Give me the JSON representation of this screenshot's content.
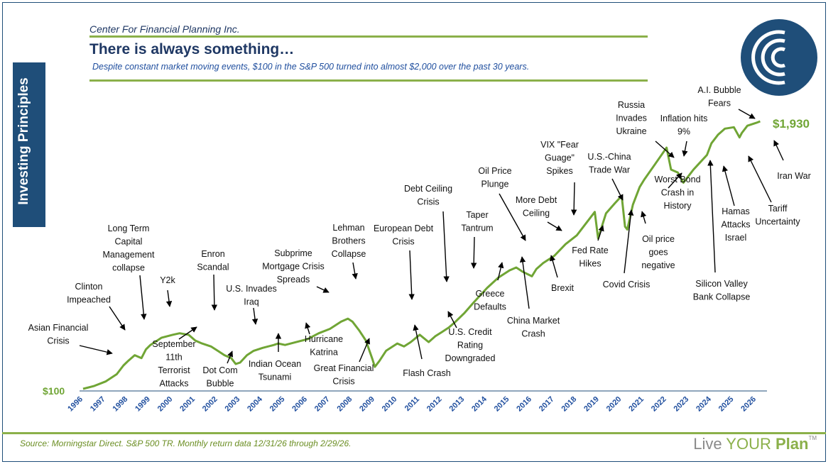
{
  "header": {
    "org": "Center For Financial Planning Inc.",
    "title": "There is always something…",
    "subtitle": "Despite constant market moving events, $100 in the S&P 500 turned into almost $2,000 over the past 30 years."
  },
  "sidebar": {
    "label": "Investing Principles"
  },
  "footer": {
    "source": "Source: Morningstar Direct. S&P 500 TR. Monthly return data 12/31/26 through 2/29/26.",
    "brand_prefix": "Live ",
    "brand_accent": "YOUR",
    "brand_suffix": " Plan",
    "brand_mark": "TM"
  },
  "colors": {
    "navy": "#1f4e79",
    "line": "#70a535",
    "axis_text": "#1f4e9e",
    "accent": "#8bb04a"
  },
  "chart_data": {
    "type": "line",
    "start_label": "$100",
    "end_label": "$1,930",
    "x_tick_labels": [
      "1996",
      "1997",
      "1998",
      "1999",
      "2000",
      "2001",
      "2002",
      "2003",
      "2004",
      "2005",
      "2006",
      "2007",
      "2008",
      "2009",
      "2010",
      "2011",
      "2012",
      "2013",
      "2014",
      "2015",
      "2016",
      "2017",
      "2018",
      "2019",
      "2020",
      "2021",
      "2022",
      "2023",
      "2024",
      "2025",
      "2026"
    ],
    "series": [
      {
        "x": [
          1996.0,
          1996.5,
          1997.0,
          1997.5,
          1997.8,
          1998.0,
          1998.3,
          1998.6,
          1998.8,
          1999.0,
          1999.5,
          2000.0,
          2000.3,
          2000.7,
          2001.0,
          2001.3,
          2001.7,
          2002.0,
          2002.3,
          2002.6,
          2002.8,
          2003.0,
          2003.3,
          2003.6,
          2004.0,
          2004.5,
          2004.7,
          2005.0,
          2005.5,
          2006.0,
          2006.5,
          2007.0,
          2007.5,
          2007.8,
          2008.0,
          2008.3,
          2008.6,
          2008.9,
          2009.0,
          2009.2,
          2009.5,
          2010.0,
          2010.3,
          2010.6,
          2011.0,
          2011.4,
          2011.7,
          2012.0,
          2012.3,
          2012.6,
          2013.0,
          2013.4,
          2014.0,
          2014.5,
          2015.0,
          2015.3,
          2015.6,
          2016.0,
          2016.2,
          2016.5,
          2017.0,
          2017.5,
          2018.0,
          2018.5,
          2018.8,
          2018.95,
          2019.3,
          2019.7,
          2020.0,
          2020.15,
          2020.25,
          2020.5,
          2020.8,
          2021.0,
          2021.5,
          2022.0,
          2022.2,
          2022.5,
          2022.75,
          2023.0,
          2023.2,
          2023.5,
          2023.8,
          2024.0,
          2024.3,
          2024.6,
          2025.0,
          2025.25,
          2025.35,
          2025.6,
          2026.0,
          2026.17
        ],
        "y": [
          100,
          120,
          150,
          200,
          260,
          290,
          330,
          310,
          370,
          400,
          450,
          470,
          480,
          470,
          430,
          410,
          390,
          360,
          330,
          310,
          270,
          280,
          330,
          360,
          380,
          400,
          410,
          400,
          420,
          440,
          480,
          510,
          560,
          580,
          560,
          500,
          430,
          300,
          250,
          290,
          360,
          410,
          390,
          420,
          470,
          420,
          460,
          490,
          520,
          560,
          620,
          690,
          790,
          860,
          910,
          930,
          900,
          870,
          920,
          960,
          1010,
          1090,
          1150,
          1250,
          1310,
          1130,
          1300,
          1370,
          1420,
          1210,
          1190,
          1360,
          1480,
          1530,
          1640,
          1750,
          1600,
          1580,
          1510,
          1560,
          1600,
          1650,
          1700,
          1780,
          1840,
          1880,
          1890,
          1820,
          1850,
          1900,
          1920,
          1930
        ]
      }
    ],
    "annotations": [
      {
        "text": "Asian Financial Crisis"
      },
      {
        "text": "Clinton Impeached"
      },
      {
        "text": "Long Term Capital Management collapse"
      },
      {
        "text": "Y2k"
      },
      {
        "text": "September 11th Terrorist Attacks"
      },
      {
        "text": "Enron Scandal"
      },
      {
        "text": "Dot Com Bubble"
      },
      {
        "text": "U.S. Invades Iraq"
      },
      {
        "text": "Indian Ocean Tsunami"
      },
      {
        "text": "Subprime Mortgage Crisis Spreads"
      },
      {
        "text": "Hurricane Katrina"
      },
      {
        "text": "Lehman Brothers Collapse"
      },
      {
        "text": "Great Financial Crisis"
      },
      {
        "text": "European Debt Crisis"
      },
      {
        "text": "Flash Crash"
      },
      {
        "text": "Debt Ceiling Crisis"
      },
      {
        "text": "U.S. Credit Rating Downgraded"
      },
      {
        "text": "Taper Tantrum"
      },
      {
        "text": "Greece Defaults"
      },
      {
        "text": "Oil Price Plunge"
      },
      {
        "text": "China Market Crash"
      },
      {
        "text": "More Debt Ceiling"
      },
      {
        "text": "Brexit"
      },
      {
        "text": "VIX \"Fear Guage\" Spikes"
      },
      {
        "text": "U.S.-China Trade War"
      },
      {
        "text": "Fed Rate Hikes"
      },
      {
        "text": "Covid Crisis"
      },
      {
        "text": "Oil price goes negative"
      },
      {
        "text": "Russia Invades Ukraine"
      },
      {
        "text": "Inflation hits 9%"
      },
      {
        "text": "Worst Bond Crash in History"
      },
      {
        "text": "Silicon Valley Bank Collapse"
      },
      {
        "text": "Hamas Attacks Israel"
      },
      {
        "text": "A.I. Bubble Fears"
      },
      {
        "text": "Tariff Uncertainty"
      },
      {
        "text": "Iran War"
      }
    ]
  }
}
